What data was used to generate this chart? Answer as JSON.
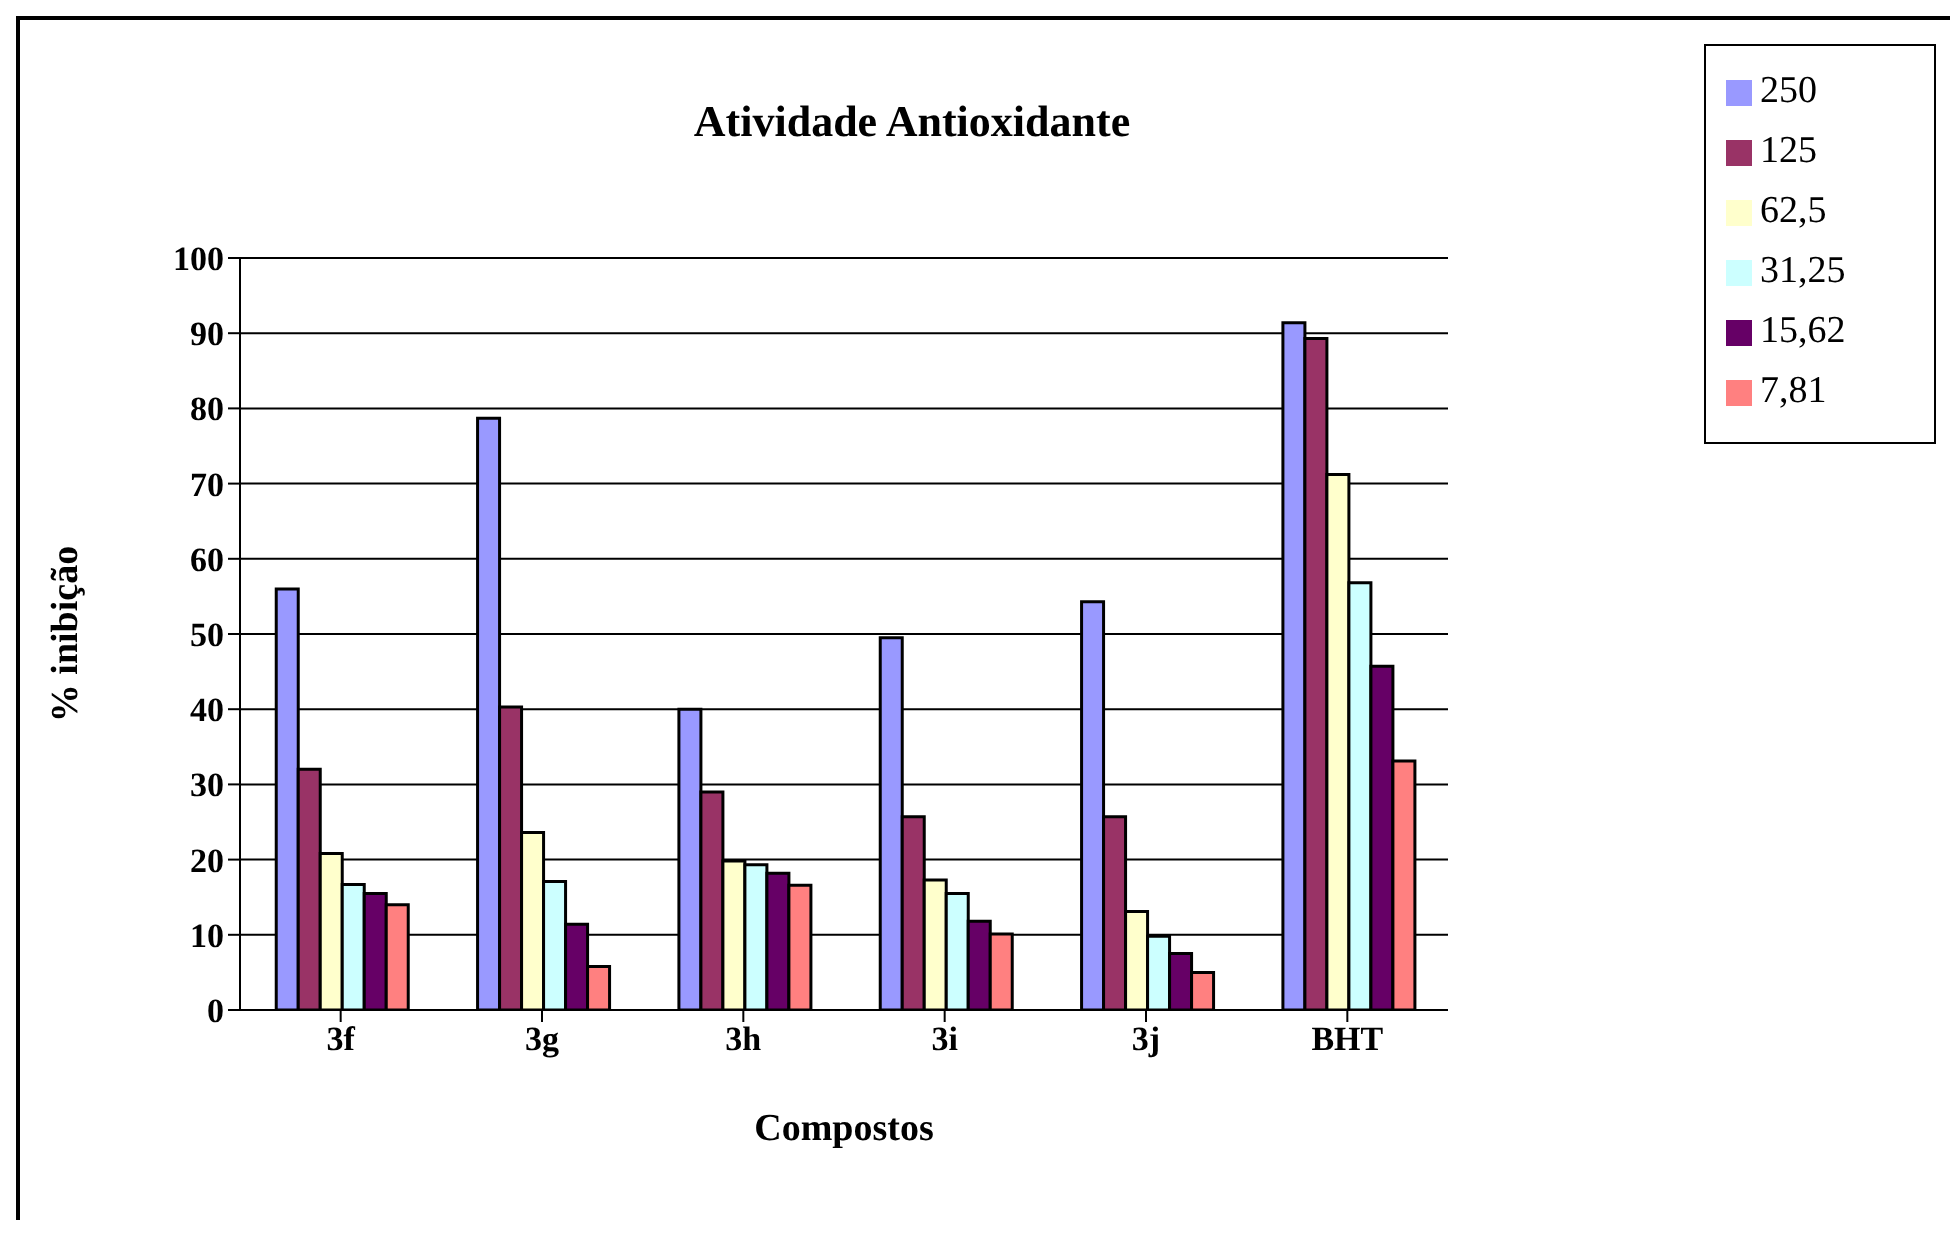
{
  "chart_data": {
    "type": "bar",
    "title": "Atividade Antioxidante",
    "xlabel": "Compostos",
    "ylabel": "% inibição",
    "categories": [
      "3f",
      "3g",
      "3h",
      "3i",
      "3j",
      "BHT"
    ],
    "series": [
      {
        "name": "250",
        "color": "#9999ff",
        "values": [
          56,
          78.7,
          40,
          49.5,
          54.3,
          91.4
        ]
      },
      {
        "name": "125",
        "color": "#993366",
        "values": [
          32,
          40.3,
          29,
          25.7,
          25.7,
          89.3
        ]
      },
      {
        "name": "62,5",
        "color": "#ffffcc",
        "values": [
          20.8,
          23.6,
          19.8,
          17.3,
          13.1,
          71.2
        ]
      },
      {
        "name": "31,25",
        "color": "#ccffff",
        "values": [
          16.7,
          17.1,
          19.3,
          15.5,
          9.8,
          56.8
        ]
      },
      {
        "name": "15,62",
        "color": "#660066",
        "values": [
          15.5,
          11.4,
          18.2,
          11.8,
          7.5,
          45.7
        ]
      },
      {
        "name": "7,81",
        "color": "#ff8080",
        "values": [
          14,
          5.8,
          16.6,
          10.1,
          5,
          33.1
        ]
      }
    ],
    "ylim": [
      0,
      100
    ],
    "yticks": [
      0,
      10,
      20,
      30,
      40,
      50,
      60,
      70,
      80,
      90,
      100
    ],
    "grid": "y",
    "legend": "top right"
  }
}
